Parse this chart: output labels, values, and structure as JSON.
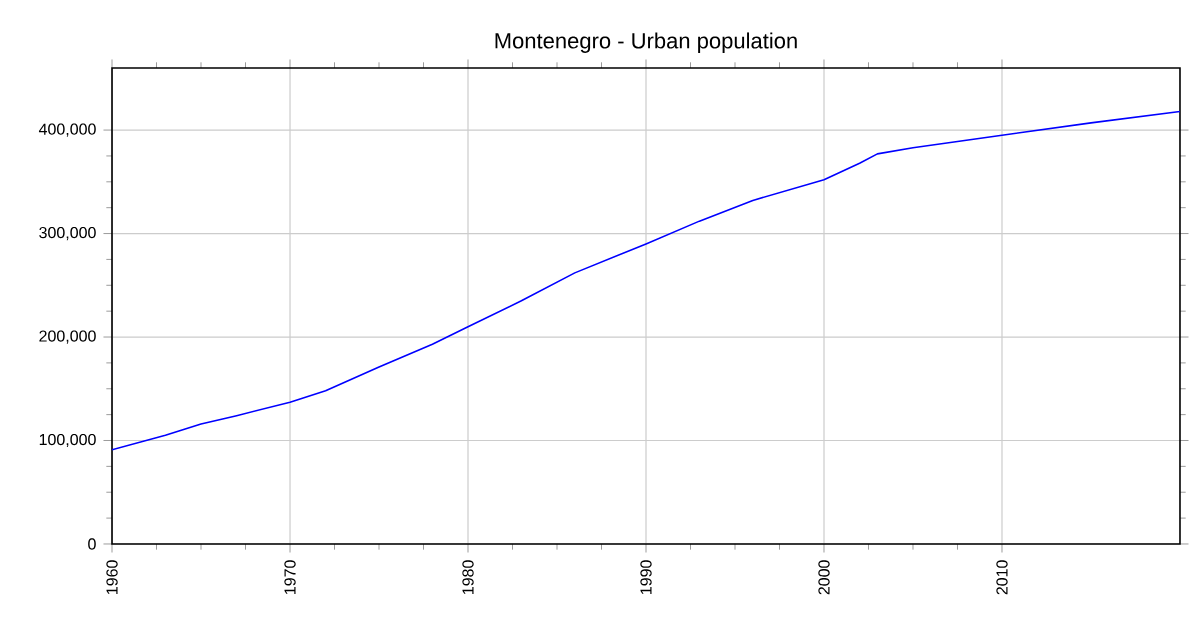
{
  "chart_data": {
    "type": "line",
    "title": "Montenegro - Urban population",
    "x": [
      1960,
      1963,
      1965,
      1967,
      1970,
      1972,
      1975,
      1978,
      1980,
      1983,
      1986,
      1990,
      1993,
      1996,
      2000,
      2002,
      2003,
      2005,
      2010,
      2015,
      2020
    ],
    "series": [
      {
        "color": "#0000ff",
        "values": [
          91000,
          105000,
          116000,
          124000,
          137000,
          148000,
          171000,
          193000,
          210000,
          235000,
          262000,
          290000,
          312000,
          332000,
          352000,
          368000,
          377000,
          383000,
          395000,
          407000,
          418000
        ]
      }
    ],
    "xlim": [
      1960,
      2020
    ],
    "ylim": [
      0,
      460000
    ],
    "xticks": [
      1960,
      1970,
      1980,
      1990,
      2000,
      2010
    ],
    "yticks": [
      0,
      {
        "value": 100000,
        "label": "100,000"
      },
      {
        "value": 200000,
        "label": "200,000"
      },
      {
        "value": 300000,
        "label": "300,000"
      },
      {
        "value": 400000,
        "label": "400,000"
      }
    ],
    "grid": true,
    "marker": "none",
    "line_style": "solid"
  }
}
